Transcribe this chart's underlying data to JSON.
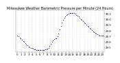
{
  "title": "Milwaukee Weather Barometric Pressure per Minute (24 Hours)",
  "title_fontsize": 3.5,
  "bg_color": "#ffffff",
  "dot_color": "#0000dd",
  "dot_size": 0.5,
  "grid_color": "#aaaaaa",
  "tick_fontsize": 2.8,
  "x_ticks": [
    0,
    1,
    2,
    3,
    4,
    5,
    6,
    7,
    8,
    9,
    10,
    11,
    12,
    13,
    14,
    15,
    16,
    17,
    18,
    19,
    20,
    21,
    22,
    23
  ],
  "x_tick_labels": [
    "0",
    "1",
    "2",
    "3",
    "4",
    "5",
    "6",
    "7",
    "8",
    "9",
    "10",
    "11",
    "12",
    "13",
    "14",
    "15",
    "16",
    "17",
    "18",
    "19",
    "20",
    "21",
    "22",
    "23"
  ],
  "ylim": [
    29.42,
    30.16
  ],
  "xlim": [
    -0.5,
    23.5
  ],
  "y_ticks": [
    29.5,
    29.6,
    29.7,
    29.8,
    29.9,
    30.0,
    30.1
  ],
  "y_tick_labels": [
    "29.5",
    "29.6",
    "29.7",
    "29.8",
    "29.9",
    "30.0",
    "30.1"
  ],
  "data_x": [
    0.0,
    0.3,
    0.6,
    0.9,
    1.2,
    1.5,
    1.8,
    2.1,
    2.4,
    2.7,
    3.0,
    3.3,
    3.6,
    3.9,
    4.2,
    4.5,
    4.8,
    5.1,
    5.4,
    5.7,
    6.0,
    6.3,
    6.6,
    6.9,
    7.2,
    7.5,
    7.8,
    8.1,
    8.4,
    8.7,
    9.0,
    9.3,
    9.6,
    9.9,
    10.2,
    10.5,
    10.8,
    11.1,
    11.4,
    11.7,
    12.0,
    12.3,
    12.6,
    12.9,
    13.2,
    13.5,
    13.8,
    14.1,
    14.4,
    14.7,
    15.0,
    15.3,
    15.6,
    15.9,
    16.2,
    16.5,
    16.8,
    17.1,
    17.4,
    17.7,
    18.0,
    18.3,
    18.6,
    18.9,
    19.2,
    19.5,
    19.8,
    20.1,
    20.4,
    20.7,
    21.0,
    21.3,
    21.6,
    21.9,
    22.2,
    22.5,
    22.8,
    23.0
  ],
  "data_y": [
    29.72,
    29.7,
    29.68,
    29.66,
    29.64,
    29.62,
    29.6,
    29.58,
    29.56,
    29.54,
    29.52,
    29.51,
    29.5,
    29.49,
    29.48,
    29.47,
    29.47,
    29.46,
    29.46,
    29.46,
    29.46,
    29.46,
    29.46,
    29.46,
    29.46,
    29.47,
    29.47,
    29.48,
    29.5,
    29.53,
    29.57,
    29.6,
    29.63,
    29.65,
    29.66,
    29.67,
    29.7,
    29.75,
    29.82,
    29.88,
    29.94,
    29.99,
    30.03,
    30.06,
    30.08,
    30.09,
    30.1,
    30.11,
    30.11,
    30.12,
    30.12,
    30.11,
    30.1,
    30.08,
    30.07,
    30.05,
    30.03,
    30.01,
    29.99,
    29.97,
    29.95,
    29.93,
    29.91,
    29.89,
    29.87,
    29.85,
    29.83,
    29.81,
    29.79,
    29.77,
    29.76,
    29.75,
    29.74,
    29.73,
    29.72,
    29.71,
    29.71,
    29.72
  ]
}
